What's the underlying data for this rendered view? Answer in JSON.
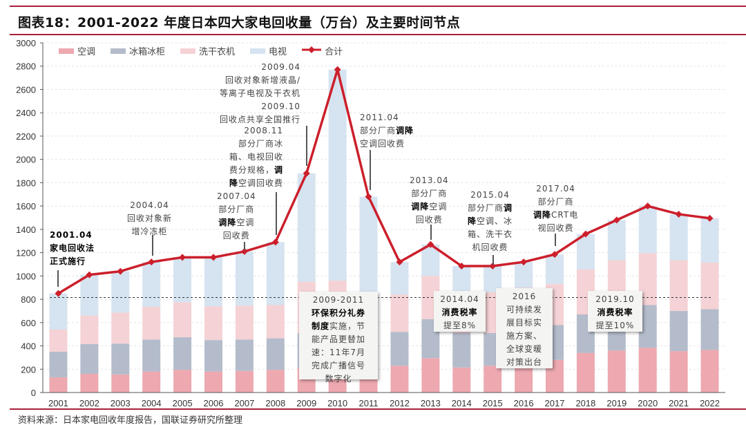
{
  "title": "图表18：2001-2022 年度日本四大家电回收量（万台）及主要时间节点",
  "source": "资料来源：日本家电回收年度报告，国联证券研究所整理",
  "chart_data": {
    "type": "bar",
    "stacked": true,
    "title": "",
    "xlabel": "",
    "ylabel": "",
    "ylim": [
      0,
      3000
    ],
    "yticks": [
      0,
      200,
      400,
      600,
      800,
      1000,
      1200,
      1400,
      1600,
      1800,
      2000,
      2200,
      2400,
      2600,
      2800,
      3000
    ],
    "grid": true,
    "legend_position": "top-left",
    "reference_line": 815,
    "categories": [
      "2001",
      "2002",
      "2003",
      "2004",
      "2005",
      "2006",
      "2007",
      "2008",
      "2009",
      "2010",
      "2011",
      "2012",
      "2013",
      "2014",
      "2015",
      "2016",
      "2017",
      "2018",
      "2019",
      "2020",
      "2021",
      "2022"
    ],
    "series": [
      {
        "name": "空调",
        "color": "#eda8b0",
        "values": [
          130,
          160,
          155,
          180,
          195,
          180,
          185,
          195,
          210,
          230,
          220,
          230,
          295,
          215,
          230,
          240,
          280,
          340,
          360,
          385,
          355,
          365
        ]
      },
      {
        "name": "冰箱冰柜",
        "color": "#b4bccb",
        "values": [
          220,
          255,
          265,
          275,
          280,
          270,
          270,
          270,
          300,
          330,
          300,
          290,
          335,
          295,
          280,
          290,
          300,
          330,
          320,
          365,
          345,
          350
        ]
      },
      {
        "name": "洗干衣机",
        "color": "#f5d2d5",
        "values": [
          190,
          245,
          265,
          280,
          300,
          290,
          290,
          285,
          440,
          400,
          280,
          320,
          370,
          350,
          350,
          370,
          350,
          385,
          455,
          445,
          435,
          400
        ]
      },
      {
        "name": "电视",
        "color": "#d6e3f0",
        "values": [
          310,
          350,
          355,
          385,
          385,
          420,
          465,
          540,
          930,
          1810,
          880,
          280,
          270,
          225,
          225,
          220,
          255,
          305,
          345,
          405,
          395,
          380
        ]
      }
    ],
    "line": {
      "name": "合计",
      "color": "#cc1f2b",
      "values": [
        850,
        1010,
        1040,
        1120,
        1160,
        1160,
        1210,
        1290,
        1880,
        2770,
        1680,
        1120,
        1270,
        1085,
        1085,
        1120,
        1185,
        1360,
        1480,
        1600,
        1530,
        1495
      ]
    }
  },
  "annotations": [
    {
      "id": "a2001",
      "lines": [
        [
          {
            "t": "2001.04",
            "b": true
          }
        ],
        [
          {
            "t": "家电回收法",
            "b": true
          }
        ],
        [
          {
            "t": "正式施行",
            "b": true
          }
        ]
      ]
    },
    {
      "id": "a2004",
      "lines": [
        [
          {
            "t": "2004.04"
          }
        ],
        [
          {
            "t": "回收对象新"
          }
        ],
        [
          {
            "t": "增冷冻柜"
          }
        ]
      ]
    },
    {
      "id": "a2007",
      "lines": [
        [
          {
            "t": "2007.04"
          }
        ],
        [
          {
            "t": "部分厂商"
          }
        ],
        [
          {
            "t": "调降",
            "b": true
          },
          {
            "t": "空调"
          }
        ],
        [
          {
            "t": "回收费"
          }
        ]
      ]
    },
    {
      "id": "a2008",
      "lines": [
        [
          {
            "t": "2008.11"
          }
        ],
        [
          {
            "t": "部分厂商冰"
          }
        ],
        [
          {
            "t": "箱、电视回收"
          }
        ],
        [
          {
            "t": "费分规格，"
          },
          {
            "t": "调",
            "b": true
          }
        ],
        [
          {
            "t": "降",
            "b": true
          },
          {
            "t": "空调回收费"
          }
        ]
      ]
    },
    {
      "id": "a2009",
      "lines": [
        [
          {
            "t": "2009.04"
          }
        ],
        [
          {
            "t": "回收对象新增液晶/"
          }
        ],
        [
          {
            "t": "等离子电视及干衣机"
          }
        ],
        [
          {
            "t": "2009.10"
          }
        ],
        [
          {
            "t": "回收点共享全国推行"
          }
        ]
      ]
    },
    {
      "id": "a2011",
      "lines": [
        [
          {
            "t": "2011.04"
          }
        ],
        [
          {
            "t": "部分厂商"
          },
          {
            "t": "调降",
            "b": true
          }
        ],
        [
          {
            "t": "空调回收费"
          }
        ]
      ]
    },
    {
      "id": "a2013",
      "lines": [
        [
          {
            "t": "2013.04"
          }
        ],
        [
          {
            "t": "部分厂商"
          }
        ],
        [
          {
            "t": "调降",
            "b": true
          },
          {
            "t": "空调"
          }
        ],
        [
          {
            "t": "回收费"
          }
        ]
      ]
    },
    {
      "id": "a2015",
      "lines": [
        [
          {
            "t": "2015.04"
          }
        ],
        [
          {
            "t": "部分厂商"
          },
          {
            "t": "调",
            "b": true
          }
        ],
        [
          {
            "t": "降",
            "b": true
          },
          {
            "t": "空调、冰"
          }
        ],
        [
          {
            "t": "箱、洗干衣"
          }
        ],
        [
          {
            "t": "机回收费"
          }
        ]
      ]
    },
    {
      "id": "a2017",
      "lines": [
        [
          {
            "t": "2017.04"
          }
        ],
        [
          {
            "t": "部分厂商"
          }
        ],
        [
          {
            "t": "调降",
            "b": true
          },
          {
            "t": "CRT电"
          }
        ],
        [
          {
            "t": "视回收费"
          }
        ]
      ]
    },
    {
      "id": "b2009",
      "lines": [
        [
          {
            "t": "2009-2011"
          }
        ],
        [
          {
            "t": "环保积分礼券",
            "b": true
          }
        ],
        [
          {
            "t": "制度",
            "b": true
          },
          {
            "t": "实施，节"
          }
        ],
        [
          {
            "t": "能产品更替加"
          }
        ],
        [
          {
            "t": "速：11年7月"
          }
        ],
        [
          {
            "t": "完成广播信号"
          }
        ],
        [
          {
            "t": "数字化"
          }
        ]
      ]
    },
    {
      "id": "b2014",
      "lines": [
        [
          {
            "t": "2014.04"
          }
        ],
        [
          {
            "t": "消费税率",
            "b": true
          }
        ],
        [
          {
            "t": "提至8%"
          }
        ]
      ]
    },
    {
      "id": "b2016",
      "lines": [
        [
          {
            "t": "2016"
          }
        ],
        [
          {
            "t": "可持续发"
          }
        ],
        [
          {
            "t": "展目标实"
          }
        ],
        [
          {
            "t": "施方案、"
          }
        ],
        [
          {
            "t": "全球变暖"
          }
        ],
        [
          {
            "t": "对策出台"
          }
        ]
      ]
    },
    {
      "id": "b2019",
      "lines": [
        [
          {
            "t": "2019.10"
          }
        ],
        [
          {
            "t": "消费税率",
            "b": true
          }
        ],
        [
          {
            "t": "提至10%"
          }
        ]
      ]
    }
  ]
}
